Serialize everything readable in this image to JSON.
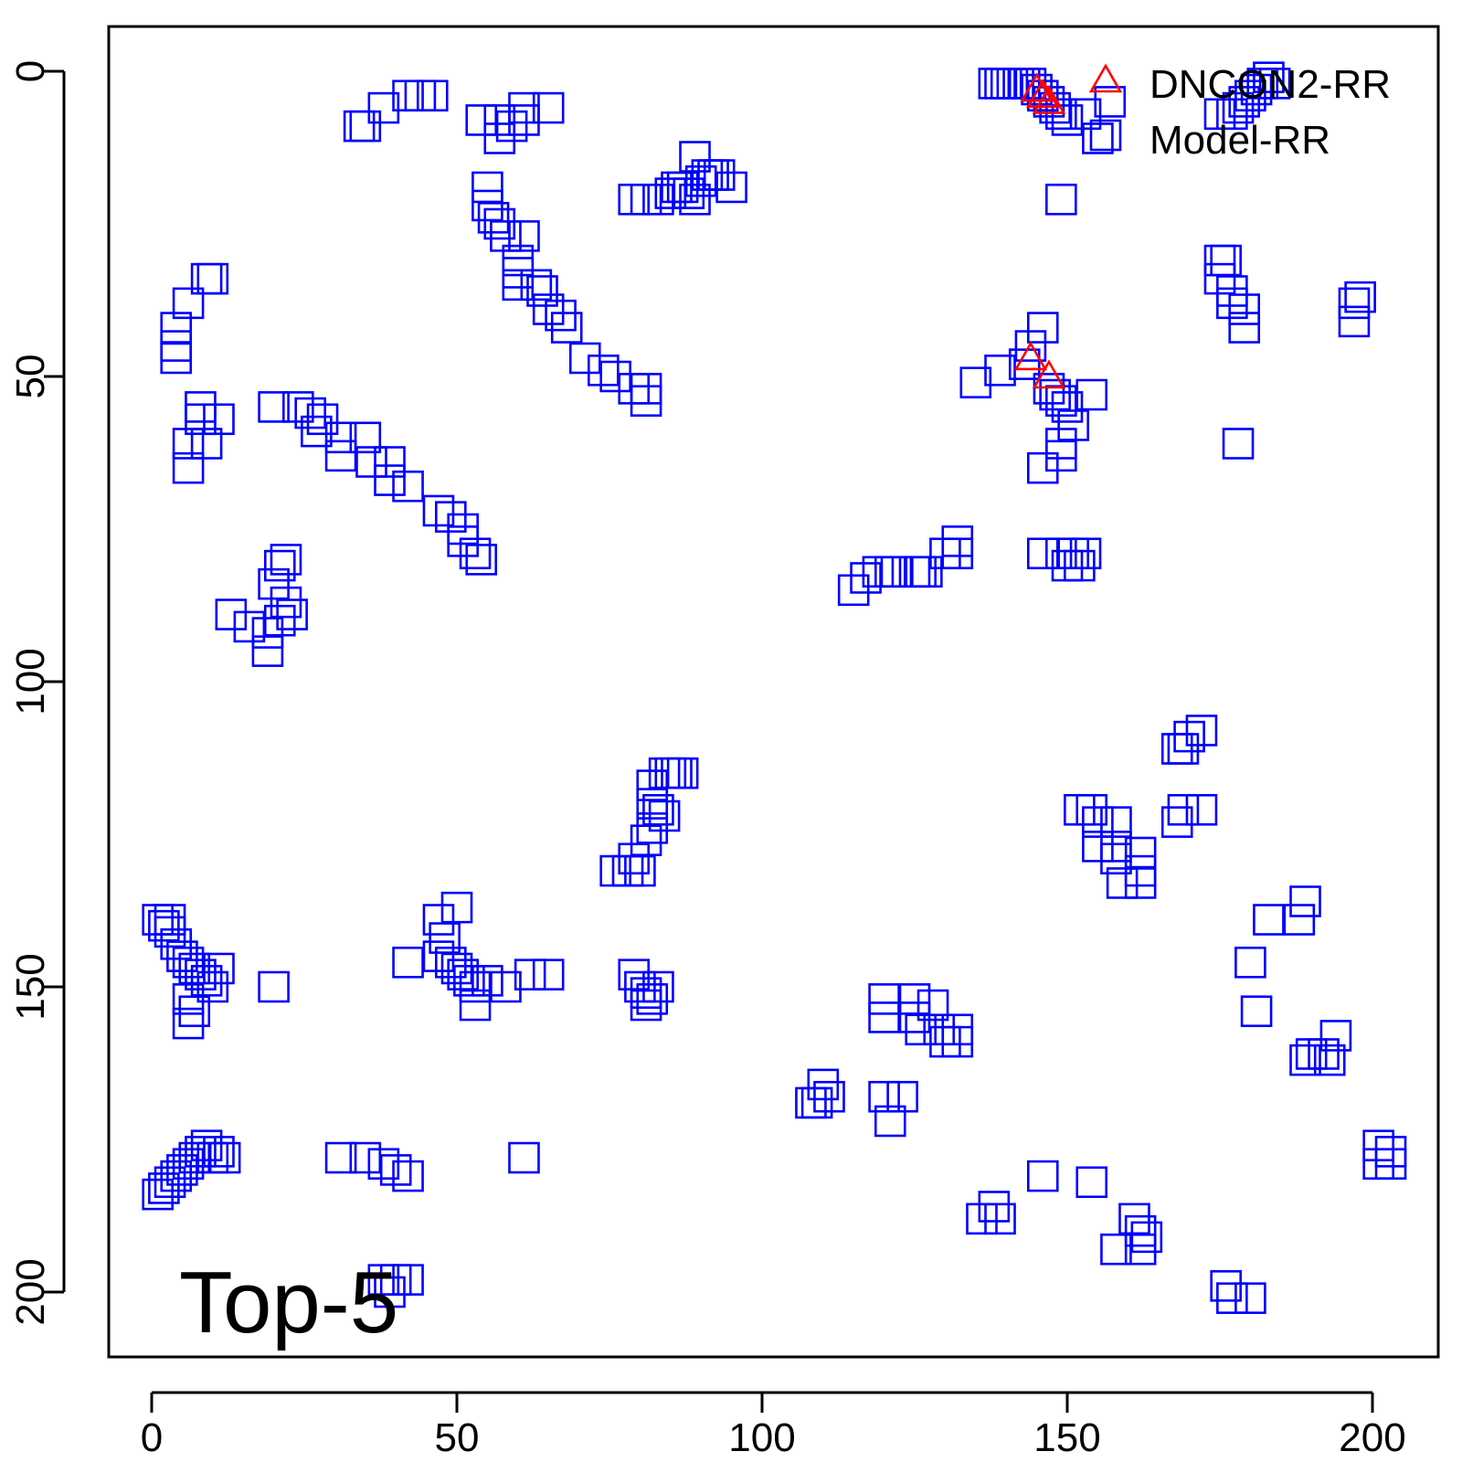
{
  "chart_data": {
    "type": "scatter",
    "title": "",
    "xlabel": "",
    "ylabel": "",
    "xlim": [
      -7,
      211
    ],
    "ylim": [
      -7,
      211
    ],
    "y_reversed": true,
    "x_ticks": [
      0,
      50,
      100,
      150,
      200
    ],
    "y_ticks": [
      0,
      50,
      100,
      150,
      200
    ],
    "grid": false,
    "legend_position": "top-right",
    "annotation": "Top-5",
    "series": [
      {
        "name": "DNCON2-RR",
        "marker": "triangle",
        "color": "#ff0000",
        "points": [
          [
            145,
            3
          ],
          [
            146,
            4
          ],
          [
            147,
            5
          ],
          [
            144,
            47
          ],
          [
            147,
            50
          ]
        ]
      },
      {
        "name": "Model-RR",
        "marker": "square",
        "color": "#0000ff",
        "points": [
          [
            138,
            2
          ],
          [
            139,
            2
          ],
          [
            140,
            2
          ],
          [
            141,
            2
          ],
          [
            142,
            2
          ],
          [
            143,
            2
          ],
          [
            144,
            2
          ],
          [
            145,
            3
          ],
          [
            146,
            4
          ],
          [
            147,
            5
          ],
          [
            148,
            6
          ],
          [
            149,
            7
          ],
          [
            150,
            8
          ],
          [
            153,
            7
          ],
          [
            155,
            11
          ],
          [
            157,
            5
          ],
          [
            149,
            21
          ],
          [
            175,
            7
          ],
          [
            177,
            7
          ],
          [
            178,
            6
          ],
          [
            179,
            5
          ],
          [
            180,
            4
          ],
          [
            181,
            3
          ],
          [
            182,
            2
          ],
          [
            183,
            1
          ],
          [
            184,
            2
          ],
          [
            34,
            9
          ],
          [
            35,
            9
          ],
          [
            38,
            6
          ],
          [
            42,
            4
          ],
          [
            44,
            4
          ],
          [
            46,
            4
          ],
          [
            54,
            8
          ],
          [
            57,
            8
          ],
          [
            57,
            11
          ],
          [
            59,
            9
          ],
          [
            61,
            8
          ],
          [
            61,
            6
          ],
          [
            65,
            6
          ],
          [
            79,
            21
          ],
          [
            81,
            21
          ],
          [
            83,
            21
          ],
          [
            85,
            20
          ],
          [
            86,
            19
          ],
          [
            87,
            19
          ],
          [
            88,
            20
          ],
          [
            89,
            21
          ],
          [
            89,
            14
          ],
          [
            90,
            18
          ],
          [
            91,
            17
          ],
          [
            92,
            17
          ],
          [
            93,
            17
          ],
          [
            95,
            19
          ],
          [
            55,
            19
          ],
          [
            55,
            22
          ],
          [
            56,
            24
          ],
          [
            57,
            25
          ],
          [
            58,
            27
          ],
          [
            61,
            27
          ],
          [
            60,
            31
          ],
          [
            60,
            33
          ],
          [
            60,
            35
          ],
          [
            63,
            35
          ],
          [
            64,
            36
          ],
          [
            65,
            39
          ],
          [
            67,
            40
          ],
          [
            68,
            42
          ],
          [
            71,
            47
          ],
          [
            74,
            49
          ],
          [
            76,
            50
          ],
          [
            79,
            52
          ],
          [
            81,
            54
          ],
          [
            81,
            52
          ],
          [
            9,
            34
          ],
          [
            10,
            34
          ],
          [
            6,
            38
          ],
          [
            4,
            42
          ],
          [
            4,
            45
          ],
          [
            4,
            47
          ],
          [
            8,
            55
          ],
          [
            8,
            57
          ],
          [
            11,
            57
          ],
          [
            6,
            61
          ],
          [
            9,
            61
          ],
          [
            6,
            65
          ],
          [
            20,
            55
          ],
          [
            24,
            55
          ],
          [
            26,
            56
          ],
          [
            28,
            57
          ],
          [
            27,
            59
          ],
          [
            31,
            60
          ],
          [
            35,
            60
          ],
          [
            31,
            63
          ],
          [
            36,
            64
          ],
          [
            39,
            64
          ],
          [
            39,
            67
          ],
          [
            42,
            68
          ],
          [
            47,
            72
          ],
          [
            49,
            73
          ],
          [
            51,
            75
          ],
          [
            51,
            77
          ],
          [
            53,
            79
          ],
          [
            54,
            80
          ],
          [
            13,
            89
          ],
          [
            16,
            91
          ],
          [
            19,
            92
          ],
          [
            19,
            95
          ],
          [
            21,
            90
          ],
          [
            22,
            87
          ],
          [
            20,
            84
          ],
          [
            21,
            81
          ],
          [
            22,
            80
          ],
          [
            23,
            89
          ],
          [
            139,
            49
          ],
          [
            143,
            48
          ],
          [
            144,
            45
          ],
          [
            135,
            51
          ],
          [
            146,
            42
          ],
          [
            147,
            52
          ],
          [
            148,
            53
          ],
          [
            149,
            54
          ],
          [
            150,
            55
          ],
          [
            151,
            58
          ],
          [
            149,
            61
          ],
          [
            149,
            63
          ],
          [
            146,
            65
          ],
          [
            154,
            53
          ],
          [
            178,
            61
          ],
          [
            115,
            85
          ],
          [
            117,
            83
          ],
          [
            119,
            82
          ],
          [
            121,
            82
          ],
          [
            122,
            82
          ],
          [
            125,
            82
          ],
          [
            126,
            82
          ],
          [
            127,
            82
          ],
          [
            130,
            79
          ],
          [
            132,
            77
          ],
          [
            132,
            79
          ],
          [
            146,
            79
          ],
          [
            149,
            79
          ],
          [
            151,
            79
          ],
          [
            153,
            79
          ],
          [
            150,
            81
          ],
          [
            152,
            81
          ],
          [
            175,
            31
          ],
          [
            176,
            31
          ],
          [
            175,
            34
          ],
          [
            177,
            36
          ],
          [
            177,
            38
          ],
          [
            179,
            39
          ],
          [
            179,
            42
          ],
          [
            197,
            38
          ],
          [
            198,
            37
          ],
          [
            197,
            41
          ],
          [
            168,
            111
          ],
          [
            169,
            111
          ],
          [
            170,
            109
          ],
          [
            172,
            108
          ],
          [
            168,
            123
          ],
          [
            169,
            121
          ],
          [
            172,
            121
          ],
          [
            82,
            117
          ],
          [
            84,
            115
          ],
          [
            85,
            115
          ],
          [
            86,
            115
          ],
          [
            87,
            115
          ],
          [
            82,
            120
          ],
          [
            83,
            121
          ],
          [
            84,
            122
          ],
          [
            82,
            124
          ],
          [
            81,
            126
          ],
          [
            76,
            131
          ],
          [
            78,
            131
          ],
          [
            79,
            129
          ],
          [
            80,
            131
          ],
          [
            152,
            121
          ],
          [
            154,
            121
          ],
          [
            155,
            123
          ],
          [
            158,
            123
          ],
          [
            155,
            127
          ],
          [
            158,
            127
          ],
          [
            158,
            129
          ],
          [
            162,
            128
          ],
          [
            162,
            131
          ],
          [
            159,
            133
          ],
          [
            162,
            133
          ],
          [
            1,
            139
          ],
          [
            2,
            140
          ],
          [
            3,
            141
          ],
          [
            4,
            143
          ],
          [
            5,
            145
          ],
          [
            6,
            146
          ],
          [
            7,
            147
          ],
          [
            8,
            148
          ],
          [
            9,
            149
          ],
          [
            10,
            150
          ],
          [
            6,
            152
          ],
          [
            7,
            154
          ],
          [
            6,
            156
          ],
          [
            3,
            139
          ],
          [
            11,
            147
          ],
          [
            47,
            139
          ],
          [
            48,
            142
          ],
          [
            50,
            137
          ],
          [
            47,
            145
          ],
          [
            49,
            146
          ],
          [
            50,
            147
          ],
          [
            51,
            148
          ],
          [
            52,
            149
          ],
          [
            53,
            150
          ],
          [
            55,
            149
          ],
          [
            58,
            150
          ],
          [
            62,
            148
          ],
          [
            65,
            148
          ],
          [
            53,
            153
          ],
          [
            42,
            146
          ],
          [
            20,
            150
          ],
          [
            79,
            148
          ],
          [
            80,
            150
          ],
          [
            81,
            151
          ],
          [
            82,
            152
          ],
          [
            83,
            150
          ],
          [
            81,
            153
          ],
          [
            180,
            146
          ],
          [
            183,
            139
          ],
          [
            188,
            139
          ],
          [
            189,
            136
          ],
          [
            181,
            154
          ],
          [
            189,
            162
          ],
          [
            190,
            161
          ],
          [
            192,
            161
          ],
          [
            193,
            162
          ],
          [
            194,
            158
          ],
          [
            120,
            152
          ],
          [
            120,
            155
          ],
          [
            125,
            152
          ],
          [
            125,
            155
          ],
          [
            126,
            157
          ],
          [
            128,
            153
          ],
          [
            129,
            157
          ],
          [
            130,
            159
          ],
          [
            132,
            157
          ],
          [
            132,
            159
          ],
          [
            108,
            169
          ],
          [
            109,
            169
          ],
          [
            111,
            168
          ],
          [
            110,
            166
          ],
          [
            123,
            168
          ],
          [
            120,
            168
          ],
          [
            121,
            172
          ],
          [
            1,
            184
          ],
          [
            2,
            183
          ],
          [
            3,
            182
          ],
          [
            4,
            181
          ],
          [
            5,
            180
          ],
          [
            6,
            179
          ],
          [
            7,
            178
          ],
          [
            8,
            177
          ],
          [
            9,
            176
          ],
          [
            10,
            178
          ],
          [
            11,
            177
          ],
          [
            12,
            178
          ],
          [
            31,
            178
          ],
          [
            35,
            178
          ],
          [
            38,
            179
          ],
          [
            40,
            180
          ],
          [
            42,
            181
          ],
          [
            61,
            178
          ],
          [
            146,
            181
          ],
          [
            154,
            182
          ],
          [
            138,
            186
          ],
          [
            136,
            188
          ],
          [
            139,
            188
          ],
          [
            158,
            193
          ],
          [
            161,
            188
          ],
          [
            162,
            190
          ],
          [
            163,
            191
          ],
          [
            162,
            193
          ],
          [
            201,
            176
          ],
          [
            203,
            177
          ],
          [
            203,
            179
          ],
          [
            201,
            179
          ],
          [
            176,
            199
          ],
          [
            177,
            201
          ],
          [
            180,
            201
          ],
          [
            38,
            198
          ],
          [
            40,
            198
          ],
          [
            42,
            198
          ],
          [
            39,
            200
          ]
        ]
      }
    ]
  }
}
